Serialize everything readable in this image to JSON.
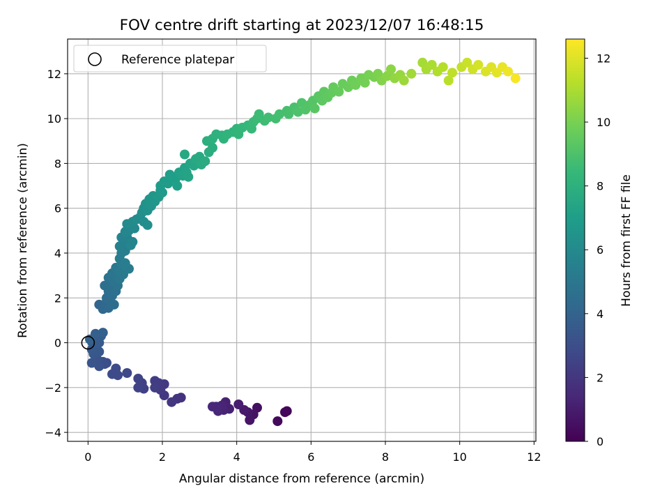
{
  "chart_data": {
    "type": "scatter",
    "title": "FOV centre drift starting at 2023/12/07 16:48:15",
    "xlabel": "Angular distance from reference (arcmin)",
    "ylabel": "Rotation from reference (arcmin)",
    "xlim": [
      -0.55,
      12.05
    ],
    "ylim": [
      -4.4,
      13.55
    ],
    "xticks": [
      "0",
      "2",
      "4",
      "6",
      "8",
      "10",
      "12"
    ],
    "yticks": [
      "−4",
      "−2",
      "0",
      "2",
      "4",
      "6",
      "8",
      "10",
      "12"
    ],
    "grid": true,
    "legend": {
      "position": "upper left",
      "label": "Reference platepar"
    },
    "reference_point": {
      "x": 0,
      "y": 0
    },
    "colorbar": {
      "label": "Hours from first FF file",
      "colormap": "viridis",
      "range": [
        0,
        12.6
      ],
      "ticks": [
        "0",
        "2",
        "4",
        "6",
        "8",
        "10",
        "12"
      ]
    },
    "colormap_stops": [
      "#440154",
      "#482878",
      "#3e4a89",
      "#31688e",
      "#26828e",
      "#1f9e89",
      "#35b779",
      "#6ece58",
      "#b5de2b",
      "#fde725"
    ],
    "series": [
      {
        "points": [
          [
            5.35,
            -3.05,
            0.15
          ],
          [
            5.3,
            -3.1,
            0.2
          ],
          [
            5.1,
            -3.5,
            0.3
          ],
          [
            4.55,
            -2.9,
            0.5
          ],
          [
            4.45,
            -3.2,
            0.6
          ],
          [
            4.35,
            -3.45,
            0.7
          ],
          [
            4.3,
            -3.1,
            0.8
          ],
          [
            4.2,
            -3.0,
            0.9
          ],
          [
            4.05,
            -2.75,
            1.0
          ],
          [
            3.8,
            -2.95,
            1.1
          ],
          [
            3.7,
            -2.65,
            1.2
          ],
          [
            3.65,
            -3.0,
            1.25
          ],
          [
            3.6,
            -2.8,
            1.3
          ],
          [
            3.5,
            -3.05,
            1.35
          ],
          [
            3.45,
            -2.85,
            1.4
          ],
          [
            3.35,
            -2.85,
            1.45
          ],
          [
            2.5,
            -2.45,
            1.8
          ],
          [
            2.4,
            -2.5,
            1.9
          ],
          [
            2.25,
            -2.65,
            2.0
          ],
          [
            2.05,
            -2.35,
            2.05
          ],
          [
            2.05,
            -1.85,
            2.1
          ],
          [
            1.95,
            -2.1,
            2.15
          ],
          [
            1.9,
            -1.8,
            2.2
          ],
          [
            1.8,
            -1.7,
            2.25
          ],
          [
            1.8,
            -2.0,
            2.3
          ],
          [
            1.5,
            -2.05,
            2.4
          ],
          [
            1.45,
            -1.8,
            2.45
          ],
          [
            1.35,
            -1.6,
            2.5
          ],
          [
            1.35,
            -2.0,
            2.55
          ],
          [
            1.05,
            -1.35,
            2.7
          ],
          [
            0.8,
            -1.45,
            2.8
          ],
          [
            0.75,
            -1.15,
            2.85
          ],
          [
            0.65,
            -1.4,
            2.9
          ],
          [
            0.5,
            -0.9,
            3.0
          ],
          [
            0.45,
            -0.95,
            3.05
          ],
          [
            0.4,
            -0.85,
            3.1
          ],
          [
            0.3,
            -1.05,
            3.15
          ],
          [
            0.25,
            -0.75,
            3.2
          ],
          [
            0.2,
            -0.85,
            3.25
          ],
          [
            0.1,
            -0.9,
            3.3
          ],
          [
            0.15,
            -0.5,
            3.4
          ],
          [
            0.3,
            -0.4,
            3.45
          ],
          [
            0.1,
            -0.3,
            3.5
          ],
          [
            0.15,
            -0.1,
            3.55
          ],
          [
            0.3,
            0.0,
            3.6
          ],
          [
            0.1,
            0.05,
            3.65
          ],
          [
            0.2,
            0.2,
            3.7
          ],
          [
            0.35,
            0.3,
            3.75
          ],
          [
            0.2,
            0.4,
            3.8
          ],
          [
            0.4,
            0.45,
            3.85
          ],
          [
            0.05,
            0.15,
            3.9
          ],
          [
            0.3,
            1.7,
            4.1
          ],
          [
            0.45,
            1.65,
            4.15
          ],
          [
            0.4,
            1.5,
            4.2
          ],
          [
            0.5,
            1.85,
            4.25
          ],
          [
            0.55,
            1.55,
            4.3
          ],
          [
            0.6,
            1.8,
            4.35
          ],
          [
            0.5,
            2.0,
            4.4
          ],
          [
            0.7,
            1.7,
            4.45
          ],
          [
            0.55,
            2.3,
            4.5
          ],
          [
            0.65,
            2.1,
            4.55
          ],
          [
            0.45,
            2.55,
            4.6
          ],
          [
            0.6,
            2.5,
            4.65
          ],
          [
            0.75,
            2.3,
            4.7
          ],
          [
            0.55,
            2.9,
            4.75
          ],
          [
            0.7,
            2.7,
            4.8
          ],
          [
            0.8,
            2.55,
            4.85
          ],
          [
            0.65,
            3.1,
            4.9
          ],
          [
            0.75,
            3.0,
            4.95
          ],
          [
            0.85,
            2.85,
            5.0
          ],
          [
            0.75,
            3.35,
            5.05
          ],
          [
            0.85,
            3.2,
            5.1
          ],
          [
            0.95,
            3.05,
            5.15
          ],
          [
            0.9,
            3.5,
            5.2
          ],
          [
            1.1,
            3.3,
            5.25
          ],
          [
            0.85,
            3.75,
            5.3
          ],
          [
            1.0,
            3.55,
            5.35
          ],
          [
            0.9,
            4.0,
            5.4
          ],
          [
            1.0,
            4.1,
            5.45
          ],
          [
            0.85,
            4.3,
            5.5
          ],
          [
            1.0,
            4.45,
            5.55
          ],
          [
            0.9,
            4.7,
            5.6
          ],
          [
            1.05,
            4.7,
            5.65
          ],
          [
            1.15,
            4.35,
            5.7
          ],
          [
            1.2,
            4.5,
            5.75
          ],
          [
            1.0,
            4.95,
            5.8
          ],
          [
            1.1,
            5.0,
            5.85
          ],
          [
            1.15,
            5.2,
            5.9
          ],
          [
            1.25,
            5.1,
            5.95
          ],
          [
            1.05,
            5.3,
            6.0
          ],
          [
            1.2,
            5.4,
            6.05
          ],
          [
            1.3,
            5.5,
            6.1
          ],
          [
            1.4,
            5.6,
            6.15
          ],
          [
            1.5,
            5.4,
            6.2
          ],
          [
            1.6,
            5.25,
            6.25
          ],
          [
            1.45,
            5.8,
            6.3
          ],
          [
            1.5,
            6.0,
            6.35
          ],
          [
            1.6,
            5.9,
            6.4
          ],
          [
            1.55,
            6.2,
            6.45
          ],
          [
            1.7,
            6.1,
            6.5
          ],
          [
            1.65,
            6.4,
            6.55
          ],
          [
            1.8,
            6.3,
            6.6
          ],
          [
            1.75,
            6.55,
            6.65
          ],
          [
            1.9,
            6.5,
            6.7
          ],
          [
            1.95,
            6.8,
            6.75
          ],
          [
            2.0,
            6.7,
            6.8
          ],
          [
            1.95,
            7.0,
            6.85
          ],
          [
            2.05,
            7.2,
            6.9
          ],
          [
            2.15,
            7.1,
            6.95
          ],
          [
            2.2,
            7.5,
            7.0
          ],
          [
            2.35,
            7.3,
            7.05
          ],
          [
            2.4,
            7.0,
            7.1
          ],
          [
            2.45,
            7.6,
            7.15
          ],
          [
            2.55,
            7.45,
            7.2
          ],
          [
            2.6,
            7.8,
            7.25
          ],
          [
            2.65,
            7.6,
            7.3
          ],
          [
            2.7,
            7.4,
            7.35
          ],
          [
            2.75,
            8.0,
            7.4
          ],
          [
            2.85,
            7.9,
            7.45
          ],
          [
            2.6,
            8.4,
            7.5
          ],
          [
            2.9,
            8.2,
            7.55
          ],
          [
            3.0,
            8.3,
            7.6
          ],
          [
            3.05,
            7.95,
            7.65
          ],
          [
            3.15,
            8.1,
            7.7
          ],
          [
            3.25,
            8.5,
            7.8
          ],
          [
            3.35,
            8.7,
            7.85
          ],
          [
            3.2,
            9.0,
            7.9
          ],
          [
            3.35,
            9.1,
            7.95
          ],
          [
            3.45,
            9.3,
            8.0
          ],
          [
            3.6,
            9.25,
            8.05
          ],
          [
            3.65,
            9.1,
            8.1
          ],
          [
            3.75,
            9.3,
            8.15
          ],
          [
            3.9,
            9.4,
            8.2
          ],
          [
            4.0,
            9.55,
            8.25
          ],
          [
            4.05,
            9.3,
            8.3
          ],
          [
            4.15,
            9.6,
            8.35
          ],
          [
            4.3,
            9.7,
            8.4
          ],
          [
            4.4,
            9.55,
            8.45
          ],
          [
            4.45,
            9.85,
            8.5
          ],
          [
            4.55,
            10.0,
            8.55
          ],
          [
            4.6,
            10.2,
            8.6
          ],
          [
            4.75,
            9.9,
            8.65
          ],
          [
            4.85,
            10.05,
            8.7
          ],
          [
            5.05,
            10.0,
            8.75
          ],
          [
            5.15,
            10.2,
            8.8
          ],
          [
            5.35,
            10.35,
            8.85
          ],
          [
            5.4,
            10.2,
            8.9
          ],
          [
            5.55,
            10.5,
            8.95
          ],
          [
            5.65,
            10.3,
            9.0
          ],
          [
            5.75,
            10.7,
            9.05
          ],
          [
            5.85,
            10.4,
            9.1
          ],
          [
            5.95,
            10.6,
            9.15
          ],
          [
            6.05,
            10.8,
            9.2
          ],
          [
            6.1,
            10.45,
            9.25
          ],
          [
            6.2,
            11.0,
            9.3
          ],
          [
            6.3,
            10.8,
            9.35
          ],
          [
            6.35,
            11.2,
            9.4
          ],
          [
            6.45,
            10.95,
            9.45
          ],
          [
            6.55,
            11.15,
            9.5
          ],
          [
            6.6,
            11.4,
            9.55
          ],
          [
            6.75,
            11.2,
            9.6
          ],
          [
            6.85,
            11.55,
            9.65
          ],
          [
            7.0,
            11.4,
            9.7
          ],
          [
            7.1,
            11.7,
            9.75
          ],
          [
            7.2,
            11.5,
            9.8
          ],
          [
            7.35,
            11.8,
            9.85
          ],
          [
            7.45,
            11.6,
            9.9
          ],
          [
            7.55,
            11.95,
            9.95
          ],
          [
            7.7,
            11.85,
            10.0
          ],
          [
            7.8,
            12.0,
            10.1
          ],
          [
            7.9,
            11.7,
            10.2
          ],
          [
            8.05,
            11.9,
            10.3
          ],
          [
            8.15,
            12.2,
            10.4
          ],
          [
            8.25,
            11.8,
            10.5
          ],
          [
            8.4,
            11.95,
            10.6
          ],
          [
            8.5,
            11.7,
            10.7
          ],
          [
            8.7,
            12.0,
            10.8
          ],
          [
            9.0,
            12.5,
            10.9
          ],
          [
            9.1,
            12.2,
            10.95
          ],
          [
            9.25,
            12.4,
            11.0
          ],
          [
            9.4,
            12.1,
            11.1
          ],
          [
            9.55,
            12.3,
            11.2
          ],
          [
            9.7,
            11.7,
            11.3
          ],
          [
            9.8,
            12.05,
            11.4
          ],
          [
            10.05,
            12.3,
            11.5
          ],
          [
            10.2,
            12.5,
            11.6
          ],
          [
            10.35,
            12.2,
            11.7
          ],
          [
            10.5,
            12.4,
            11.8
          ],
          [
            10.7,
            12.1,
            11.9
          ],
          [
            10.85,
            12.3,
            12.0
          ],
          [
            11.0,
            12.05,
            12.1
          ],
          [
            11.15,
            12.3,
            12.2
          ],
          [
            11.3,
            12.1,
            12.3
          ],
          [
            11.5,
            11.8,
            12.5
          ]
        ]
      }
    ]
  }
}
